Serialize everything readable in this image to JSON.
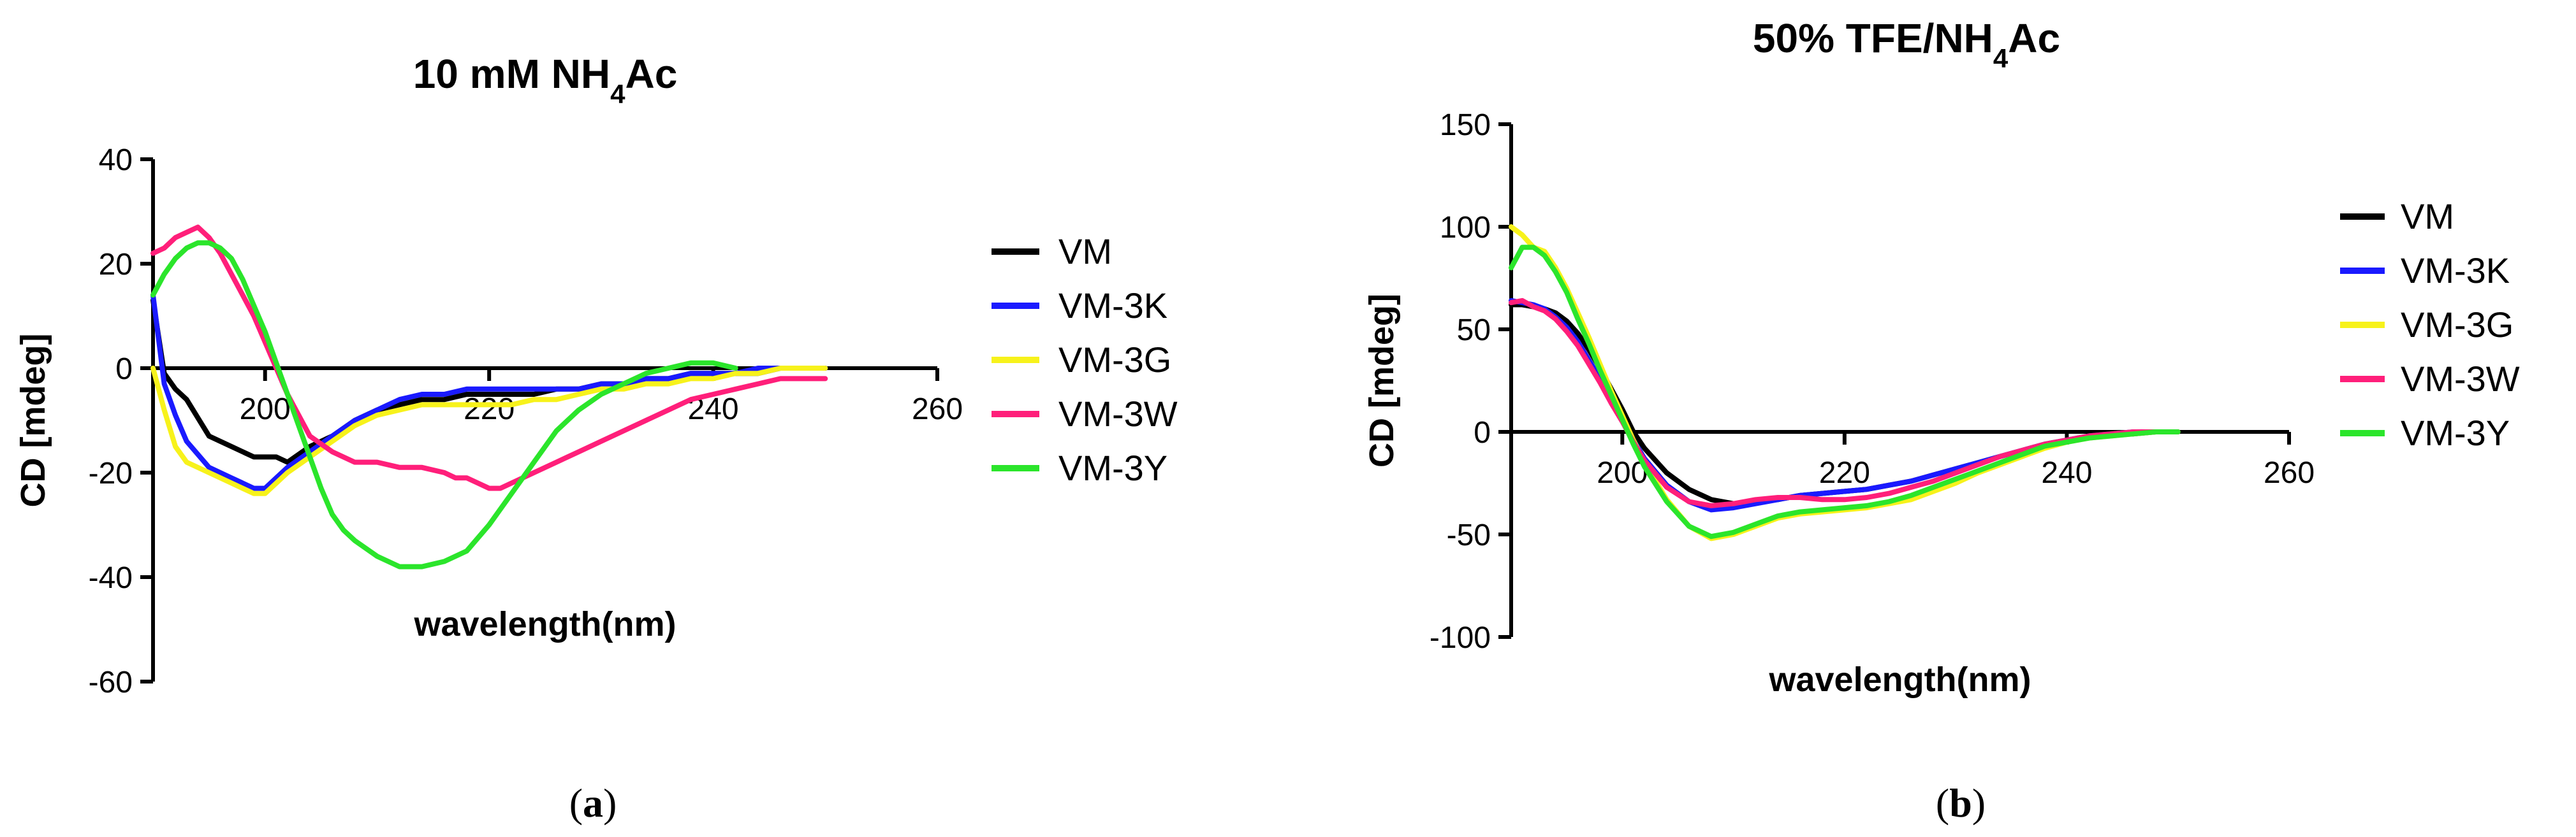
{
  "chart_data": [
    {
      "type": "line",
      "panel_label": "a",
      "title": {
        "main": "10 mM NH",
        "sub": "4",
        "tail": "Ac"
      },
      "xlabel": "wavelength(nm)",
      "ylabel": "CD [mdeg]",
      "xlim": [
        190,
        260
      ],
      "ylim": [
        -60,
        40
      ],
      "x_ticks": [
        200,
        220,
        240,
        260
      ],
      "y_ticks": [
        40,
        20,
        0,
        -20,
        -40,
        -60
      ],
      "legend_position": "right",
      "series": [
        {
          "name": "VM",
          "color": "#000000",
          "x": [
            190,
            191,
            192,
            193,
            195,
            197,
            199,
            200,
            201,
            202,
            204,
            206,
            208,
            210,
            212,
            214,
            216,
            218,
            220,
            222,
            224,
            226,
            228,
            230,
            232,
            234,
            236,
            238,
            240,
            242,
            244,
            246,
            248,
            250
          ],
          "y": [
            13,
            -1,
            -4,
            -6,
            -13,
            -15,
            -17,
            -17,
            -17,
            -18,
            -15,
            -13,
            -10,
            -8,
            -7,
            -6,
            -6,
            -5,
            -5,
            -5,
            -5,
            -4,
            -4,
            -3,
            -3,
            -2,
            -2,
            -1,
            -1,
            -1,
            -1,
            0,
            0,
            0
          ]
        },
        {
          "name": "VM-3K",
          "color": "#1a1aff",
          "x": [
            190,
            191,
            192,
            193,
            195,
            197,
            199,
            200,
            201,
            202,
            204,
            206,
            208,
            210,
            212,
            214,
            216,
            218,
            220,
            222,
            224,
            226,
            228,
            230,
            232,
            234,
            236,
            238,
            240,
            242,
            244,
            246,
            248,
            250
          ],
          "y": [
            14,
            -3,
            -9,
            -14,
            -19,
            -21,
            -23,
            -23,
            -21,
            -19,
            -16,
            -13,
            -10,
            -8,
            -6,
            -5,
            -5,
            -4,
            -4,
            -4,
            -4,
            -4,
            -4,
            -3,
            -3,
            -2,
            -2,
            -1,
            -1,
            -1,
            0,
            0,
            0,
            0
          ]
        },
        {
          "name": "VM-3G",
          "color": "#f7f21b",
          "x": [
            190,
            191,
            192,
            193,
            195,
            197,
            199,
            200,
            201,
            202,
            204,
            206,
            208,
            210,
            212,
            214,
            216,
            218,
            220,
            222,
            224,
            226,
            228,
            230,
            232,
            234,
            236,
            238,
            240,
            242,
            244,
            246,
            248,
            250
          ],
          "y": [
            0,
            -8,
            -15,
            -18,
            -20,
            -22,
            -24,
            -24,
            -22,
            -20,
            -17,
            -14,
            -11,
            -9,
            -8,
            -7,
            -7,
            -7,
            -7,
            -7,
            -6,
            -6,
            -5,
            -4,
            -4,
            -3,
            -3,
            -2,
            -2,
            -1,
            -1,
            0,
            0,
            0
          ]
        },
        {
          "name": "VM-3W",
          "color": "#ff1f7a",
          "x": [
            190,
            191,
            192,
            193,
            194,
            195,
            196,
            197,
            198,
            199,
            200,
            201,
            202,
            203,
            204,
            206,
            208,
            210,
            212,
            214,
            216,
            217,
            218,
            220,
            221,
            222,
            224,
            226,
            228,
            230,
            232,
            234,
            236,
            238,
            240,
            242,
            244,
            246,
            248,
            250
          ],
          "y": [
            22,
            23,
            25,
            26,
            27,
            25,
            22,
            18,
            14,
            10,
            5,
            0,
            -5,
            -9,
            -13,
            -16,
            -18,
            -18,
            -19,
            -19,
            -20,
            -21,
            -21,
            -23,
            -23,
            -22,
            -20,
            -18,
            -16,
            -14,
            -12,
            -10,
            -8,
            -6,
            -5,
            -4,
            -3,
            -2,
            -2,
            -2
          ]
        },
        {
          "name": "VM-3Y",
          "color": "#2be52b",
          "x": [
            190,
            191,
            192,
            193,
            194,
            195,
            196,
            197,
            198,
            199,
            200,
            201,
            202,
            203,
            204,
            205,
            206,
            207,
            208,
            210,
            212,
            214,
            216,
            218,
            220,
            222,
            224,
            226,
            228,
            230,
            232,
            234,
            236,
            238,
            240,
            242
          ],
          "y": [
            14,
            18,
            21,
            23,
            24,
            24,
            23,
            21,
            17,
            12,
            7,
            1,
            -5,
            -11,
            -17,
            -23,
            -28,
            -31,
            -33,
            -36,
            -38,
            -38,
            -37,
            -35,
            -30,
            -24,
            -18,
            -12,
            -8,
            -5,
            -3,
            -1,
            0,
            1,
            1,
            0
          ]
        }
      ]
    },
    {
      "type": "line",
      "panel_label": "b",
      "title": {
        "main": "50% TFE/NH",
        "sub": "4",
        "tail": "Ac"
      },
      "xlabel": "wavelength(nm)",
      "ylabel": "CD [mdeg]",
      "xlim": [
        190,
        260
      ],
      "ylim": [
        -100,
        150
      ],
      "x_ticks": [
        200,
        220,
        240,
        260
      ],
      "y_ticks": [
        150,
        100,
        50,
        0,
        -50,
        -100
      ],
      "legend_position": "right",
      "series": [
        {
          "name": "VM",
          "color": "#000000",
          "x": [
            190,
            191,
            192,
            193,
            194,
            195,
            196,
            197,
            198,
            199,
            200,
            201,
            202,
            204,
            206,
            208,
            210,
            212,
            214,
            216,
            218,
            220,
            222,
            224,
            226,
            228,
            230,
            232,
            234,
            236,
            238,
            240,
            242,
            244,
            246,
            248,
            250
          ],
          "y": [
            62,
            62,
            61,
            60,
            58,
            54,
            48,
            40,
            31,
            21,
            11,
            0,
            -8,
            -20,
            -28,
            -33,
            -35,
            -34,
            -33,
            -31,
            -30,
            -29,
            -28,
            -26,
            -24,
            -21,
            -18,
            -15,
            -12,
            -9,
            -6,
            -4,
            -2,
            -1,
            -1,
            0,
            0
          ]
        },
        {
          "name": "VM-3K",
          "color": "#1a1aff",
          "x": [
            190,
            191,
            192,
            193,
            194,
            195,
            196,
            197,
            198,
            199,
            200,
            201,
            202,
            204,
            206,
            208,
            210,
            212,
            214,
            216,
            218,
            220,
            222,
            224,
            226,
            228,
            230,
            232,
            234,
            236,
            238,
            240,
            242,
            244,
            246,
            248,
            250
          ],
          "y": [
            64,
            63,
            62,
            60,
            56,
            51,
            44,
            35,
            26,
            16,
            6,
            -4,
            -13,
            -26,
            -34,
            -38,
            -37,
            -35,
            -33,
            -31,
            -30,
            -29,
            -28,
            -26,
            -24,
            -21,
            -18,
            -15,
            -12,
            -9,
            -6,
            -4,
            -2,
            -1,
            0,
            0,
            0
          ]
        },
        {
          "name": "VM-3G",
          "color": "#f7f21b",
          "x": [
            190,
            191,
            192,
            193,
            194,
            195,
            196,
            197,
            198,
            199,
            200,
            201,
            202,
            204,
            206,
            208,
            210,
            212,
            214,
            216,
            218,
            220,
            222,
            224,
            226,
            228,
            230,
            232,
            234,
            236,
            238,
            240,
            242,
            244,
            246,
            248,
            250
          ],
          "y": [
            100,
            96,
            90,
            88,
            80,
            70,
            58,
            46,
            33,
            20,
            8,
            -4,
            -15,
            -33,
            -46,
            -52,
            -50,
            -46,
            -42,
            -40,
            -39,
            -38,
            -37,
            -35,
            -33,
            -29,
            -25,
            -20,
            -16,
            -12,
            -8,
            -5,
            -3,
            -2,
            -1,
            0,
            0
          ]
        },
        {
          "name": "VM-3W",
          "color": "#ff1f7a",
          "x": [
            190,
            191,
            192,
            193,
            194,
            195,
            196,
            197,
            198,
            199,
            200,
            201,
            202,
            204,
            206,
            208,
            210,
            212,
            214,
            216,
            218,
            220,
            222,
            224,
            226,
            228,
            230,
            232,
            234,
            236,
            238,
            240,
            242,
            244,
            246,
            248,
            250
          ],
          "y": [
            63,
            64,
            61,
            59,
            55,
            49,
            42,
            33,
            24,
            14,
            5,
            -5,
            -14,
            -27,
            -34,
            -36,
            -35,
            -33,
            -32,
            -32,
            -33,
            -33,
            -32,
            -30,
            -27,
            -24,
            -20,
            -16,
            -12,
            -9,
            -6,
            -4,
            -2,
            -1,
            0,
            0,
            0
          ]
        },
        {
          "name": "VM-3Y",
          "color": "#2be52b",
          "x": [
            190,
            191,
            192,
            193,
            194,
            195,
            196,
            197,
            198,
            199,
            200,
            201,
            202,
            204,
            206,
            208,
            210,
            212,
            214,
            216,
            218,
            220,
            222,
            224,
            226,
            228,
            230,
            232,
            234,
            236,
            238,
            240,
            242,
            244,
            246,
            248,
            250
          ],
          "y": [
            80,
            90,
            90,
            86,
            78,
            68,
            55,
            43,
            30,
            18,
            6,
            -6,
            -17,
            -34,
            -46,
            -51,
            -49,
            -45,
            -41,
            -39,
            -38,
            -37,
            -36,
            -34,
            -31,
            -27,
            -23,
            -19,
            -15,
            -11,
            -7,
            -5,
            -3,
            -2,
            -1,
            0,
            0
          ]
        }
      ]
    }
  ]
}
